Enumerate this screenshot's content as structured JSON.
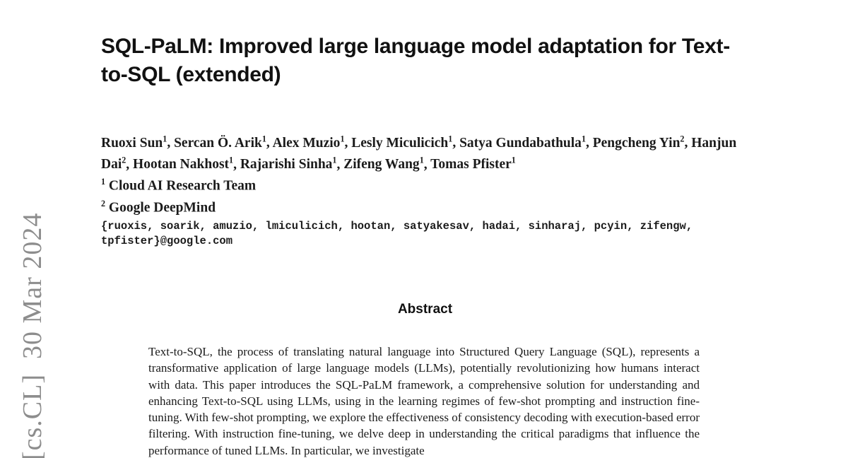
{
  "arxiv_stamp": "[cs.CL]  30 Mar 2024",
  "paper": {
    "title": "SQL-PaLM: Improved large language model adaptation for Text-to-SQL (extended)",
    "authors": [
      {
        "name": "Ruoxi Sun",
        "affil": "1"
      },
      {
        "name": "Sercan Ö. Arik",
        "affil": "1"
      },
      {
        "name": "Alex Muzio",
        "affil": "1"
      },
      {
        "name": "Lesly Miculicich",
        "affil": "1"
      },
      {
        "name": "Satya Gundabathula",
        "affil": "1"
      },
      {
        "name": "Pengcheng Yin",
        "affil": "2"
      },
      {
        "name": "Hanjun Dai",
        "affil": "2"
      },
      {
        "name": "Hootan Nakhost",
        "affil": "1"
      },
      {
        "name": "Rajarishi Sinha",
        "affil": "1"
      },
      {
        "name": "Zifeng Wang",
        "affil": "1"
      },
      {
        "name": "Tomas Pfister",
        "affil": "1"
      }
    ],
    "affiliations": [
      {
        "marker": "1",
        "name": "Cloud AI Research Team"
      },
      {
        "marker": "2",
        "name": "Google DeepMind"
      }
    ],
    "emails": "{ruoxis, soarik, amuzio, lmiculicich, hootan, satyakesav, hadai, sinharaj, pcyin, zifengw, tpfister}@google.com",
    "abstract": {
      "heading": "Abstract",
      "text": "Text-to-SQL, the process of translating natural language into Structured Query Language (SQL), represents a transformative application of large language models (LLMs), potentially revolutionizing how humans interact with data. This paper introduces the SQL-PaLM framework, a comprehensive solution for understanding and enhancing Text-to-SQL using LLMs, using in the learning regimes of few-shot prompting and instruction fine-tuning. With few-shot prompting, we explore the effectiveness of consistency decoding with execution-based error filtering. With instruction fine-tuning, we delve deep in understanding the critical paradigms that influence the performance of tuned LLMs. In particular, we investigate"
    }
  },
  "colors": {
    "background": "#ffffff",
    "text": "#1b1b1b",
    "title_text": "#111111",
    "stamp_gray": "#8d8d8d"
  }
}
